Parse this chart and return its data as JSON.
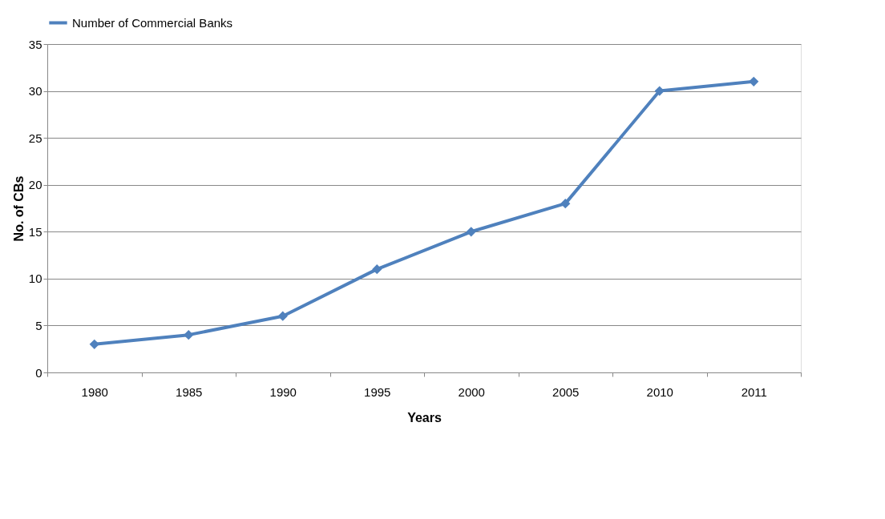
{
  "chart_data": {
    "type": "line",
    "xlabel": "Years",
    "ylabel": "No. of CBs",
    "categories": [
      "1980",
      "1985",
      "1990",
      "1995",
      "2000",
      "2005",
      "2010",
      "2011"
    ],
    "series": [
      {
        "name": "Number of Commercial Banks",
        "color": "#4f81bd",
        "values": [
          3,
          4,
          6,
          11,
          15,
          18,
          30,
          31
        ]
      }
    ],
    "ylim": [
      0,
      35
    ],
    "yticks": [
      0,
      5,
      10,
      15,
      20,
      25,
      30,
      35
    ],
    "grid": "y",
    "legend": "top",
    "marker": "diamond",
    "line_style": "solid"
  }
}
